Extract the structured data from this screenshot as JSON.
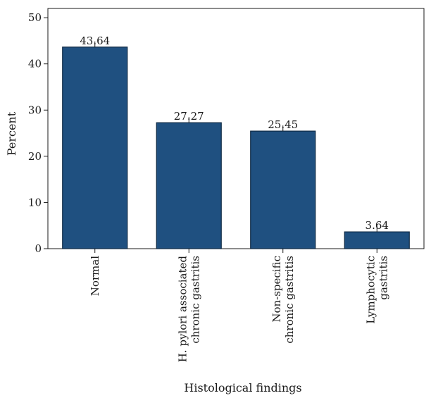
{
  "chart_data": {
    "type": "bar",
    "categories": [
      [
        "Normal"
      ],
      [
        "H. pylori associated",
        "chronic gastritis"
      ],
      [
        "Non-specific",
        "chronic gastritis"
      ],
      [
        "Lymphocytic",
        "gastritis"
      ]
    ],
    "values": [
      43.64,
      27.27,
      25.45,
      3.64
    ],
    "data_labels": [
      "43.64",
      "27.27",
      "25.45",
      "3.64"
    ],
    "xlabel": "Histological findings",
    "ylabel": "Percent",
    "ylim": [
      0,
      52
    ],
    "yticks": [
      0,
      10,
      20,
      30,
      40,
      50
    ],
    "grid": false,
    "bar_color": "#1f5080",
    "bar_edge_color": "#0f2a45"
  }
}
